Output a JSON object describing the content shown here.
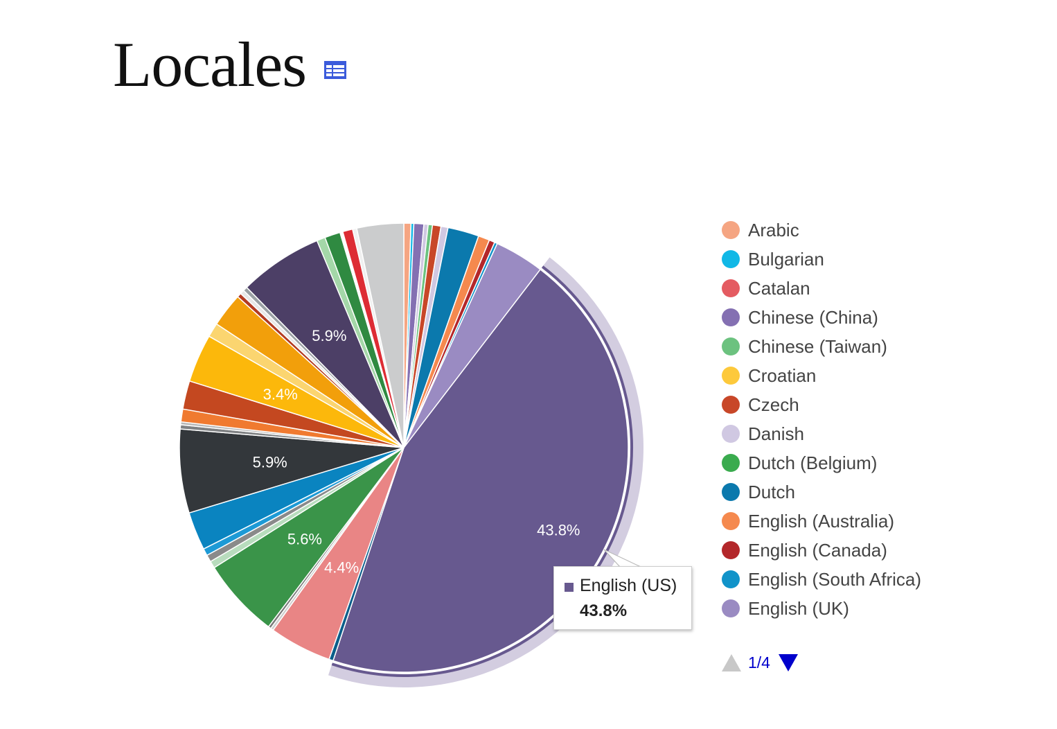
{
  "header": {
    "title": "Locales",
    "table_icon": "table-grid-icon",
    "table_icon_color": "#3b5bdb"
  },
  "tooltip": {
    "label": "English (US)",
    "value": "43.8%",
    "color": "#67598f"
  },
  "pager": {
    "text": "1/4",
    "prev_icon": "triangle-up-icon",
    "next_icon": "triangle-down-icon",
    "active_color": "#0000cc",
    "disabled_color": "#c8c8c8"
  },
  "legend": [
    {
      "label": "Arabic",
      "color": "#f5a582"
    },
    {
      "label": "Bulgarian",
      "color": "#11b8e6"
    },
    {
      "label": "Catalan",
      "color": "#e45b61"
    },
    {
      "label": "Chinese (China)",
      "color": "#8470b2"
    },
    {
      "label": "Chinese (Taiwan)",
      "color": "#6cc27f"
    },
    {
      "label": "Croatian",
      "color": "#fdc93b"
    },
    {
      "label": "Czech",
      "color": "#c84728"
    },
    {
      "label": "Danish",
      "color": "#d0c8e2"
    },
    {
      "label": "Dutch (Belgium)",
      "color": "#3aab4e"
    },
    {
      "label": "Dutch",
      "color": "#0b79ad"
    },
    {
      "label": "English (Australia)",
      "color": "#f5894e"
    },
    {
      "label": "English (Canada)",
      "color": "#b3272a"
    },
    {
      "label": "English (South Africa)",
      "color": "#1193c9"
    },
    {
      "label": "English (UK)",
      "color": "#9a8bc2"
    }
  ],
  "chart_data": {
    "type": "pie",
    "title": "Locales",
    "unit": "%",
    "start_angle_deg": 0,
    "direction": "clockwise",
    "highlighted": "English (US)",
    "slices": [
      {
        "label": "Arabic",
        "value": 0.5,
        "color": "#f5a582"
      },
      {
        "label": "Bulgarian",
        "value": 0.2,
        "color": "#11b8e6"
      },
      {
        "label": "Chinese (China)",
        "value": 0.7,
        "color": "#8470b2"
      },
      {
        "label": "Danish",
        "value": 0.3,
        "color": "#d0c8e2"
      },
      {
        "label": "Chinese (Taiwan)",
        "value": 0.3,
        "color": "#6cc27f"
      },
      {
        "label": "Czech",
        "value": 0.6,
        "color": "#c84728"
      },
      {
        "label": "Danish",
        "value": 0.5,
        "color": "#d0c8e2"
      },
      {
        "label": "Dutch",
        "value": 2.2,
        "color": "#0b79ad"
      },
      {
        "label": "English (Australia)",
        "value": 0.8,
        "color": "#f5894e"
      },
      {
        "label": "English (Canada)",
        "value": 0.4,
        "color": "#b3272a"
      },
      {
        "label": "English (South Africa)",
        "value": 0.2,
        "color": "#1193c9"
      },
      {
        "label": "English (UK)",
        "value": 3.5,
        "color": "#9a8bc2"
      },
      {
        "label": "English (US)",
        "value": 43.8,
        "color": "#67598f",
        "data_label": "43.8%"
      },
      {
        "label": "",
        "value": 0.3,
        "color": "#0b5e8a"
      },
      {
        "label": "",
        "value": 4.4,
        "color": "#e98585",
        "data_label": "4.4%"
      },
      {
        "label": "",
        "value": 0.2,
        "color": "#cfcfcf"
      },
      {
        "label": "",
        "value": 0.2,
        "color": "#7a7a7a"
      },
      {
        "label": "",
        "value": 5.6,
        "color": "#3a9449",
        "data_label": "5.6%"
      },
      {
        "label": "",
        "value": 0.5,
        "color": "#b8dcbd"
      },
      {
        "label": "",
        "value": 0.5,
        "color": "#8a8a8a"
      },
      {
        "label": "",
        "value": 0.5,
        "color": "#1d9ad6"
      },
      {
        "label": "",
        "value": 2.7,
        "color": "#0a84c0"
      },
      {
        "label": "",
        "value": 5.9,
        "color": "#33373b",
        "data_label": "5.9%"
      },
      {
        "label": "",
        "value": 0.3,
        "color": "#7f8183"
      },
      {
        "label": "",
        "value": 0.2,
        "color": "#b7b7b7"
      },
      {
        "label": "",
        "value": 0.9,
        "color": "#f07a30"
      },
      {
        "label": "",
        "value": 2.0,
        "color": "#c44820"
      },
      {
        "label": "",
        "value": 3.4,
        "color": "#fcb80b",
        "data_label": "3.4%"
      },
      {
        "label": "",
        "value": 1.0,
        "color": "#fbd570"
      },
      {
        "label": "",
        "value": 2.4,
        "color": "#f29f0b"
      },
      {
        "label": "",
        "value": 0.3,
        "color": "#b33b22"
      },
      {
        "label": "",
        "value": 0.3,
        "color": "#e8e8e8"
      },
      {
        "label": "",
        "value": 0.3,
        "color": "#9aa0a3"
      },
      {
        "label": "",
        "value": 5.9,
        "color": "#4c3f66",
        "data_label": "5.9%"
      },
      {
        "label": "",
        "value": 0.6,
        "color": "#a4d7a8"
      },
      {
        "label": "",
        "value": 1.1,
        "color": "#2f8a41"
      },
      {
        "label": "",
        "value": 0.2,
        "color": "#ffffff"
      },
      {
        "label": "",
        "value": 0.7,
        "color": "#dd2c34"
      },
      {
        "label": "",
        "value": 0.3,
        "color": "#f0f0f0"
      },
      {
        "label": "",
        "value": 3.3,
        "color": "#cbcccd"
      }
    ]
  }
}
